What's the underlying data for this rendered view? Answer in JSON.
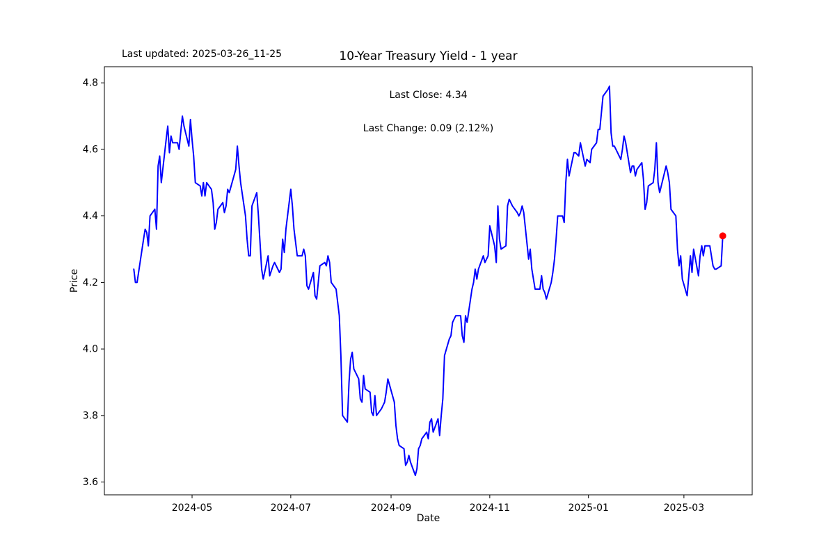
{
  "header": {
    "last_updated": "Last updated: 2025-03-26_11-25",
    "title": "10-Year Treasury Yield - 1 year",
    "subtitle_line1": "Last Close: 4.34",
    "subtitle_line2": "Last Change: 0.09 (2.12%)"
  },
  "chart_data": {
    "type": "line",
    "title": "10-Year Treasury Yield - 1 year",
    "xlabel": "Date",
    "ylabel": "Price",
    "grid": false,
    "legend": "none",
    "line_color": "#0000ff",
    "line_width": 2,
    "last_point_marker": {
      "shape": "circle",
      "color": "#ff0000",
      "radius": 5
    },
    "axis_color": "#000000",
    "x_tick_labels": [
      "2024-05",
      "2024-07",
      "2024-09",
      "2024-11",
      "2025-01",
      "2025-03"
    ],
    "y_ticks": [
      3.6,
      3.8,
      4.0,
      4.2,
      4.4,
      4.6,
      4.8
    ],
    "y_tick_labels": [
      "3.6",
      "3.8",
      "4.0",
      "4.2",
      "4.4",
      "4.6",
      "4.8"
    ],
    "ylim_approx": [
      3.56,
      4.85
    ],
    "last_close": 4.34,
    "last_change": 0.09,
    "last_change_pct": "2.12%",
    "series": [
      {
        "name": "10-Year Treasury Yield",
        "dates": [
          "2024-03-26",
          "2024-03-27",
          "2024-03-28",
          "2024-04-01",
          "2024-04-02",
          "2024-04-03",
          "2024-04-04",
          "2024-04-05",
          "2024-04-08",
          "2024-04-09",
          "2024-04-10",
          "2024-04-11",
          "2024-04-12",
          "2024-04-15",
          "2024-04-16",
          "2024-04-17",
          "2024-04-18",
          "2024-04-19",
          "2024-04-22",
          "2024-04-23",
          "2024-04-24",
          "2024-04-25",
          "2024-04-26",
          "2024-04-29",
          "2024-04-30",
          "2024-05-01",
          "2024-05-02",
          "2024-05-03",
          "2024-05-06",
          "2024-05-07",
          "2024-05-08",
          "2024-05-09",
          "2024-05-10",
          "2024-05-13",
          "2024-05-14",
          "2024-05-15",
          "2024-05-16",
          "2024-05-17",
          "2024-05-20",
          "2024-05-21",
          "2024-05-22",
          "2024-05-23",
          "2024-05-24",
          "2024-05-28",
          "2024-05-29",
          "2024-05-30",
          "2024-05-31",
          "2024-06-03",
          "2024-06-04",
          "2024-06-05",
          "2024-06-06",
          "2024-06-07",
          "2024-06-10",
          "2024-06-11",
          "2024-06-12",
          "2024-06-13",
          "2024-06-14",
          "2024-06-17",
          "2024-06-18",
          "2024-06-20",
          "2024-06-21",
          "2024-06-24",
          "2024-06-25",
          "2024-06-26",
          "2024-06-27",
          "2024-06-28",
          "2024-07-01",
          "2024-07-02",
          "2024-07-03",
          "2024-07-05",
          "2024-07-08",
          "2024-07-09",
          "2024-07-10",
          "2024-07-11",
          "2024-07-12",
          "2024-07-15",
          "2024-07-16",
          "2024-07-17",
          "2024-07-18",
          "2024-07-19",
          "2024-07-22",
          "2024-07-23",
          "2024-07-24",
          "2024-07-25",
          "2024-07-26",
          "2024-07-29",
          "2024-07-30",
          "2024-07-31",
          "2024-08-01",
          "2024-08-02",
          "2024-08-05",
          "2024-08-06",
          "2024-08-07",
          "2024-08-08",
          "2024-08-09",
          "2024-08-12",
          "2024-08-13",
          "2024-08-14",
          "2024-08-15",
          "2024-08-16",
          "2024-08-19",
          "2024-08-20",
          "2024-08-21",
          "2024-08-22",
          "2024-08-23",
          "2024-08-26",
          "2024-08-27",
          "2024-08-28",
          "2024-08-29",
          "2024-08-30",
          "2024-09-03",
          "2024-09-04",
          "2024-09-05",
          "2024-09-06",
          "2024-09-09",
          "2024-09-10",
          "2024-09-11",
          "2024-09-12",
          "2024-09-13",
          "2024-09-16",
          "2024-09-17",
          "2024-09-18",
          "2024-09-19",
          "2024-09-20",
          "2024-09-23",
          "2024-09-24",
          "2024-09-25",
          "2024-09-26",
          "2024-09-27",
          "2024-09-30",
          "2024-10-01",
          "2024-10-02",
          "2024-10-03",
          "2024-10-04",
          "2024-10-07",
          "2024-10-08",
          "2024-10-09",
          "2024-10-10",
          "2024-10-11",
          "2024-10-14",
          "2024-10-15",
          "2024-10-16",
          "2024-10-17",
          "2024-10-18",
          "2024-10-21",
          "2024-10-22",
          "2024-10-23",
          "2024-10-24",
          "2024-10-25",
          "2024-10-28",
          "2024-10-29",
          "2024-10-30",
          "2024-10-31",
          "2024-11-01",
          "2024-11-04",
          "2024-11-05",
          "2024-11-06",
          "2024-11-07",
          "2024-11-08",
          "2024-11-11",
          "2024-11-12",
          "2024-11-13",
          "2024-11-14",
          "2024-11-15",
          "2024-11-18",
          "2024-11-19",
          "2024-11-20",
          "2024-11-21",
          "2024-11-22",
          "2024-11-25",
          "2024-11-26",
          "2024-11-27",
          "2024-11-29",
          "2024-12-02",
          "2024-12-03",
          "2024-12-04",
          "2024-12-05",
          "2024-12-06",
          "2024-12-09",
          "2024-12-10",
          "2024-12-11",
          "2024-12-12",
          "2024-12-13",
          "2024-12-16",
          "2024-12-17",
          "2024-12-18",
          "2024-12-19",
          "2024-12-20",
          "2024-12-23",
          "2024-12-24",
          "2024-12-26",
          "2024-12-27",
          "2024-12-30",
          "2024-12-31",
          "2025-01-02",
          "2025-01-03",
          "2025-01-06",
          "2025-01-07",
          "2025-01-08",
          "2025-01-10",
          "2025-01-13",
          "2025-01-14",
          "2025-01-15",
          "2025-01-16",
          "2025-01-17",
          "2025-01-21",
          "2025-01-22",
          "2025-01-23",
          "2025-01-24",
          "2025-01-27",
          "2025-01-28",
          "2025-01-29",
          "2025-01-30",
          "2025-01-31",
          "2025-02-03",
          "2025-02-04",
          "2025-02-05",
          "2025-02-06",
          "2025-02-07",
          "2025-02-10",
          "2025-02-11",
          "2025-02-12",
          "2025-02-13",
          "2025-02-14",
          "2025-02-18",
          "2025-02-19",
          "2025-02-20",
          "2025-02-21",
          "2025-02-24",
          "2025-02-25",
          "2025-02-26",
          "2025-02-27",
          "2025-02-28",
          "2025-03-03",
          "2025-03-04",
          "2025-03-05",
          "2025-03-06",
          "2025-03-07",
          "2025-03-10",
          "2025-03-11",
          "2025-03-12",
          "2025-03-13",
          "2025-03-14",
          "2025-03-17",
          "2025-03-18",
          "2025-03-19",
          "2025-03-20",
          "2025-03-21",
          "2025-03-24",
          "2025-03-25"
        ],
        "values": [
          4.24,
          4.2,
          4.2,
          4.33,
          4.36,
          4.35,
          4.31,
          4.4,
          4.42,
          4.36,
          4.55,
          4.58,
          4.5,
          4.63,
          4.67,
          4.59,
          4.64,
          4.62,
          4.62,
          4.6,
          4.65,
          4.7,
          4.67,
          4.61,
          4.69,
          4.63,
          4.58,
          4.5,
          4.49,
          4.46,
          4.5,
          4.46,
          4.5,
          4.48,
          4.44,
          4.36,
          4.38,
          4.42,
          4.44,
          4.41,
          4.43,
          4.48,
          4.47,
          4.54,
          4.61,
          4.55,
          4.5,
          4.4,
          4.33,
          4.28,
          4.28,
          4.43,
          4.47,
          4.4,
          4.32,
          4.24,
          4.21,
          4.28,
          4.22,
          4.25,
          4.26,
          4.23,
          4.24,
          4.33,
          4.29,
          4.36,
          4.48,
          4.43,
          4.36,
          4.28,
          4.28,
          4.3,
          4.28,
          4.19,
          4.18,
          4.23,
          4.16,
          4.15,
          4.2,
          4.25,
          4.26,
          4.25,
          4.28,
          4.26,
          4.2,
          4.18,
          4.14,
          4.1,
          3.98,
          3.8,
          3.78,
          3.9,
          3.97,
          3.99,
          3.94,
          3.91,
          3.85,
          3.84,
          3.92,
          3.88,
          3.87,
          3.81,
          3.8,
          3.86,
          3.8,
          3.82,
          3.83,
          3.84,
          3.87,
          3.91,
          3.84,
          3.77,
          3.73,
          3.71,
          3.7,
          3.65,
          3.66,
          3.68,
          3.66,
          3.62,
          3.64,
          3.7,
          3.71,
          3.73,
          3.75,
          3.73,
          3.78,
          3.79,
          3.75,
          3.79,
          3.74,
          3.8,
          3.85,
          3.98,
          4.03,
          4.04,
          4.08,
          4.09,
          4.1,
          4.1,
          4.04,
          4.02,
          4.1,
          4.08,
          4.18,
          4.2,
          4.24,
          4.21,
          4.24,
          4.28,
          4.26,
          4.27,
          4.28,
          4.37,
          4.31,
          4.26,
          4.43,
          4.33,
          4.3,
          4.31,
          4.43,
          4.45,
          4.44,
          4.43,
          4.41,
          4.4,
          4.41,
          4.43,
          4.41,
          4.27,
          4.3,
          4.24,
          4.18,
          4.18,
          4.22,
          4.18,
          4.17,
          4.15,
          4.2,
          4.23,
          4.27,
          4.33,
          4.4,
          4.4,
          4.38,
          4.5,
          4.57,
          4.52,
          4.59,
          4.59,
          4.58,
          4.62,
          4.55,
          4.57,
          4.56,
          4.6,
          4.62,
          4.66,
          4.66,
          4.76,
          4.78,
          4.79,
          4.65,
          4.61,
          4.61,
          4.57,
          4.6,
          4.64,
          4.62,
          4.53,
          4.55,
          4.55,
          4.52,
          4.54,
          4.56,
          4.51,
          4.42,
          4.44,
          4.49,
          4.5,
          4.54,
          4.62,
          4.5,
          4.47,
          4.55,
          4.53,
          4.5,
          4.42,
          4.4,
          4.3,
          4.25,
          4.28,
          4.21,
          4.16,
          4.22,
          4.28,
          4.23,
          4.3,
          4.22,
          4.28,
          4.31,
          4.28,
          4.31,
          4.31,
          4.28,
          4.25,
          4.24,
          4.24,
          4.25,
          4.34
        ]
      }
    ]
  }
}
